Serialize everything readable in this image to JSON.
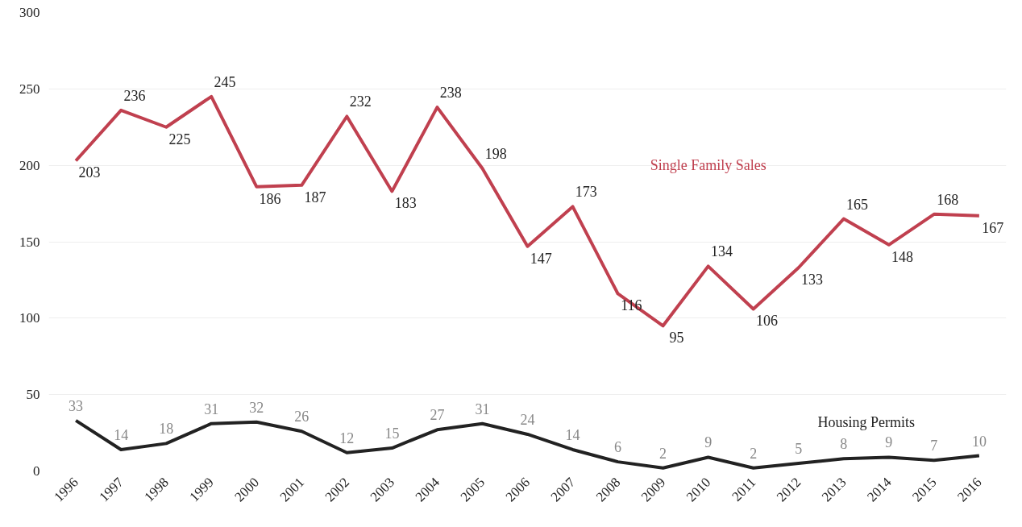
{
  "chart_data": {
    "type": "line",
    "categories": [
      "1996",
      "1997",
      "1998",
      "1999",
      "2000",
      "2001",
      "2002",
      "2003",
      "2004",
      "2005",
      "2006",
      "2007",
      "2008",
      "2009",
      "2010",
      "2011",
      "2012",
      "2013",
      "2014",
      "2015",
      "2016"
    ],
    "series": [
      {
        "name": "Single Family Sales",
        "color": "#c0404f",
        "values": [
          203,
          236,
          225,
          245,
          186,
          187,
          232,
          183,
          238,
          198,
          147,
          173,
          116,
          95,
          134,
          106,
          133,
          165,
          148,
          168,
          167
        ]
      },
      {
        "name": "Housing Permits",
        "color": "#222222",
        "values": [
          33,
          14,
          18,
          31,
          32,
          26,
          12,
          15,
          27,
          31,
          24,
          14,
          6,
          2,
          9,
          2,
          5,
          8,
          9,
          7,
          10
        ]
      }
    ],
    "ylim": [
      0,
      300
    ],
    "yticks": [
      0,
      50,
      100,
      150,
      200,
      250,
      300
    ],
    "grid": "y",
    "data_labels": true,
    "marker": "none",
    "line_style": "solid"
  }
}
